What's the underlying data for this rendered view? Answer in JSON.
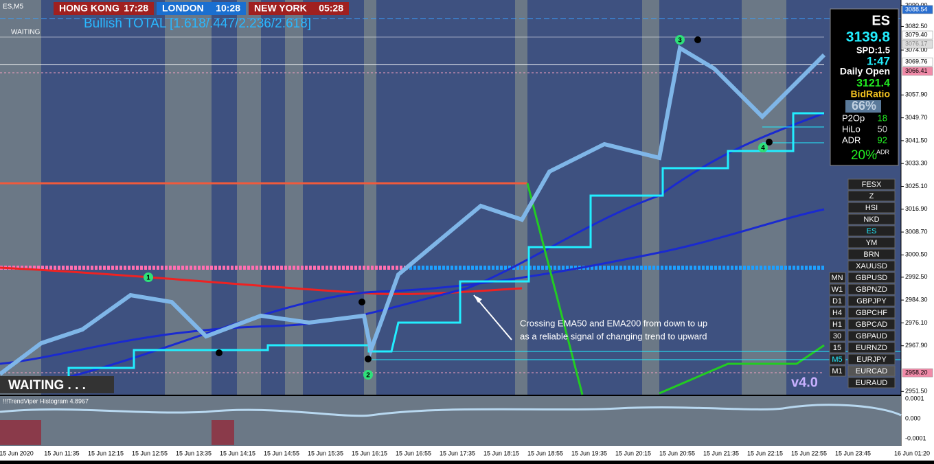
{
  "header": {
    "symbol": "ES,M5",
    "clocks": [
      {
        "city": "HONG KONG",
        "time": "17:28"
      },
      {
        "city": "LONDON",
        "time": "10:28"
      },
      {
        "city": "NEW YORK",
        "time": "05:28"
      }
    ],
    "signal": "Bullish TOTAL [1.618/.447/2.236/2.618]",
    "status": "WAITING",
    "banner": "WAITING . . .",
    "version": "v4.0"
  },
  "annotation": [
    "Crossing EMA50 and EMA200 from down to up",
    "as a reliable signal of changing trend to upward"
  ],
  "markers": [
    "1",
    "2",
    "3",
    "4"
  ],
  "price_axis": [
    "3090.00",
    "3082.50",
    "3074.00",
    "3057.90",
    "3049.70",
    "3041.50",
    "3033.30",
    "3025.10",
    "3016.90",
    "3008.70",
    "3000.50",
    "2992.50",
    "2984.30",
    "2976.10",
    "2967.90",
    "2951.50"
  ],
  "price_tags": [
    {
      "label": "3088.54",
      "style": "blue"
    },
    {
      "label": "3079.40",
      "style": "white"
    },
    {
      "label": "3076.17",
      "style": "grey"
    },
    {
      "label": "3069.76",
      "style": "white"
    },
    {
      "label": "3066.41",
      "style": "pink"
    },
    {
      "label": "2958.20",
      "style": "pink"
    }
  ],
  "time_axis": [
    "15 Jun 2020",
    "15 Jun 11:35",
    "15 Jun 12:15",
    "15 Jun 12:55",
    "15 Jun 13:35",
    "15 Jun 14:15",
    "15 Jun 14:55",
    "15 Jun 15:35",
    "15 Jun 16:15",
    "15 Jun 16:55",
    "15 Jun 17:35",
    "15 Jun 18:15",
    "15 Jun 18:55",
    "15 Jun 19:35",
    "15 Jun 20:15",
    "15 Jun 20:55",
    "15 Jun 21:35",
    "15 Jun 22:15",
    "15 Jun 22:55",
    "15 Jun 23:45",
    "16 Jun 01:20"
  ],
  "histogram": {
    "title": "!!!TrendViper Histogram 4.8967",
    "axis": [
      "0.0001",
      "0.000",
      "-0.0001"
    ]
  },
  "panel": {
    "symbol": "ES",
    "price": "3139.8",
    "spread": "SPD:1.5",
    "timer": "1:47",
    "daily_open_label": "Daily Open",
    "daily_open": "3121.4",
    "bid_ratio_label": "BidRatio",
    "bid_ratio": "66%",
    "stats": [
      {
        "name": "P2Op",
        "value": "18"
      },
      {
        "name": "HiLo",
        "value": "50"
      },
      {
        "name": "ADR",
        "value": "92"
      }
    ],
    "adr_pct": "20%",
    "adr_pct_label": "ADR"
  },
  "symbols": [
    "FESX",
    "Z",
    "HSI",
    "NKD",
    "ES",
    "YM",
    "BRN",
    "XAUUSD",
    "GBPUSD",
    "GBPNZD",
    "GBPJPY",
    "GBPCHF",
    "GBPCAD",
    "GBPAUD",
    "EURNZD",
    "EURJPY",
    "EURCAD",
    "EURAUD"
  ],
  "timeframes": [
    "MN",
    "W1",
    "D1",
    "H4",
    "H1",
    "30",
    "15",
    "M5",
    "M1"
  ]
}
